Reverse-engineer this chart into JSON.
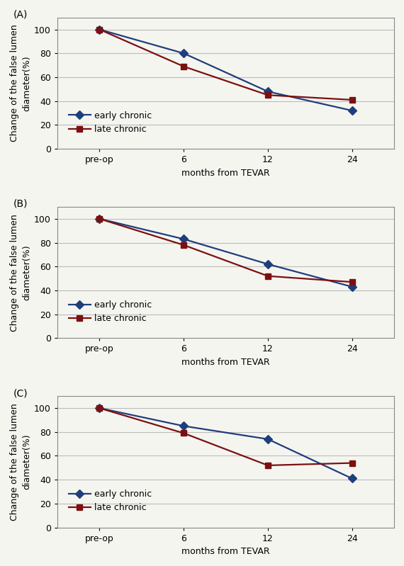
{
  "panels": [
    {
      "label": "(A)",
      "early_chronic": [
        100,
        80,
        48,
        32
      ],
      "late_chronic": [
        100,
        69,
        45,
        41
      ]
    },
    {
      "label": "(B)",
      "early_chronic": [
        100,
        83,
        62,
        43
      ],
      "late_chronic": [
        100,
        78,
        52,
        47
      ]
    },
    {
      "label": "(C)",
      "early_chronic": [
        100,
        85,
        74,
        41
      ],
      "late_chronic": [
        100,
        79,
        52,
        54
      ]
    }
  ],
  "x_labels": [
    "pre-op",
    "6",
    "12",
    "24"
  ],
  "x_positions": [
    0,
    1,
    2,
    3
  ],
  "xlabel": "months from TEVAR",
  "ylabel": "Change of the false lumen\ndiameter(%)",
  "ylim": [
    0,
    110
  ],
  "yticks": [
    0,
    20,
    40,
    60,
    80,
    100
  ],
  "early_color": "#1F3E7C",
  "late_color": "#7B1010",
  "early_label": "early chronic",
  "late_label": "late chronic",
  "bg_color": "#F5F5F0",
  "plot_bg_color": "#F5F5F0",
  "grid_color": "#BBBBBB",
  "linewidth": 1.6,
  "marker_size": 6,
  "label_fontsize": 9,
  "tick_fontsize": 9,
  "legend_fontsize": 9,
  "panel_label_fontsize": 10
}
